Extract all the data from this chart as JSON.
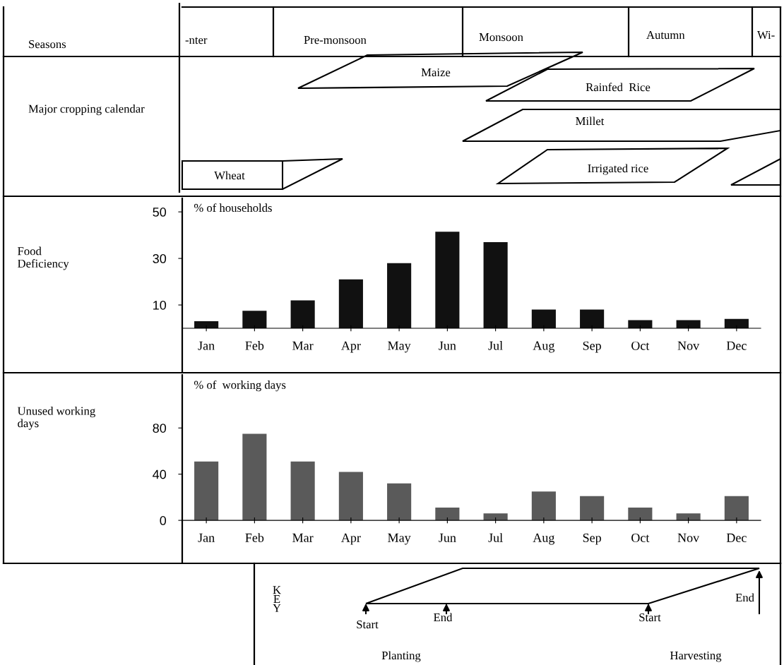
{
  "chart_data": [
    {
      "type": "other",
      "ylabel": "Seasons",
      "categories": [
        "-nter",
        "Pre-monsoon",
        "Monsoon",
        "Autumn",
        "Wi-"
      ]
    },
    {
      "type": "other",
      "ylabel": "Major cropping calendar",
      "categories": [
        "Maize",
        "Rainfed  Rice",
        "Millet",
        "Irrigated rice",
        "Wheat"
      ]
    },
    {
      "type": "bar",
      "title": "% of households",
      "ylabel": "Food\nDeficiency",
      "categories": [
        "Jan",
        "Feb",
        "Mar",
        "Apr",
        "May",
        "Jun",
        "Jul",
        "Aug",
        "Sep",
        "Oct",
        "Nov",
        "Dec"
      ],
      "values": [
        3,
        7.5,
        12,
        21,
        28,
        41.5,
        37,
        8,
        8,
        3.5,
        3.5,
        4
      ],
      "color": "#111111",
      "ylim": [
        -18.5,
        55.8
      ],
      "yticks": [
        10,
        30,
        50
      ],
      "grid": false
    },
    {
      "type": "bar",
      "title": "% of  working days",
      "ylabel": "Unused working\ndays",
      "categories": [
        "Jan",
        "Feb",
        "Mar",
        "Apr",
        "May",
        "Jun",
        "Jul",
        "Aug",
        "Sep",
        "Oct",
        "Nov",
        "Dec"
      ],
      "values": [
        51,
        75,
        51,
        42,
        32,
        11,
        6,
        25,
        21,
        11,
        6,
        21
      ],
      "color": "#5a5a5a",
      "ylim": [
        -36,
        126
      ],
      "yticks": [
        0,
        40,
        80
      ],
      "grid": false
    },
    {
      "type": "other",
      "ylabel": "KEY",
      "annotations": [
        "Start",
        "End",
        "Start",
        "End",
        "Planting",
        "Harvesting"
      ]
    }
  ]
}
